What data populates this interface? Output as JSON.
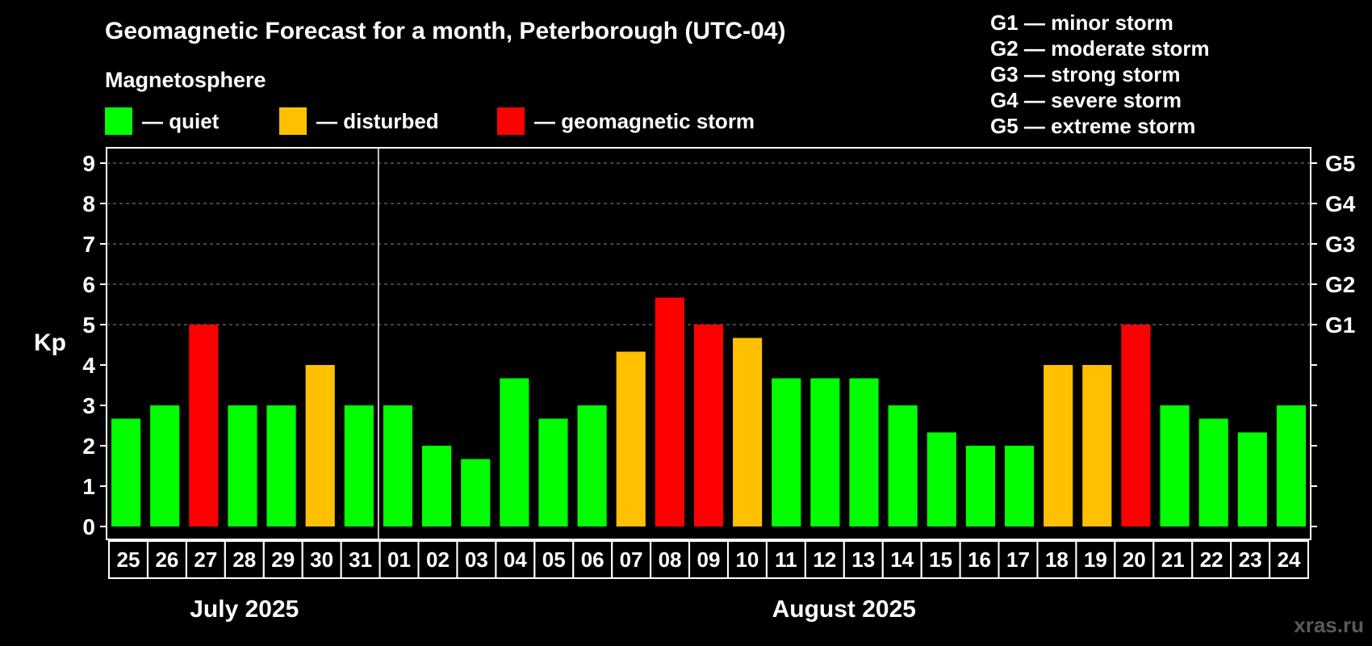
{
  "title": "Geomagnetic Forecast for a month, Peterborough (UTC-04)",
  "legend": {
    "heading": "Magnetosphere",
    "items": [
      {
        "label": "— quiet",
        "color": "#00ff00"
      },
      {
        "label": "— disturbed",
        "color": "#ffc000"
      },
      {
        "label": "— geomagnetic storm",
        "color": "#ff0000"
      }
    ]
  },
  "storm_scale": [
    "G1 — minor storm",
    "G2 — moderate storm",
    "G3 — strong storm",
    "G4 — severe storm",
    "G5 — extreme storm"
  ],
  "watermark": "xras.ru",
  "colors": {
    "quiet": "#00ff00",
    "disturbed": "#ffc000",
    "storm": "#ff0000"
  },
  "chart_data": {
    "type": "bar",
    "ylabel": "Kp",
    "ylim": [
      0,
      9
    ],
    "yticks": [
      0,
      1,
      2,
      3,
      4,
      5,
      6,
      7,
      8,
      9
    ],
    "right_ticks": [
      {
        "value": 5,
        "label": "G1"
      },
      {
        "value": 6,
        "label": "G2"
      },
      {
        "value": 7,
        "label": "G3"
      },
      {
        "value": 8,
        "label": "G4"
      },
      {
        "value": 9,
        "label": "G5"
      }
    ],
    "grid": "dashed at 5,6,7,8,9",
    "categories": [
      "25",
      "26",
      "27",
      "28",
      "29",
      "30",
      "31",
      "01",
      "02",
      "03",
      "04",
      "05",
      "06",
      "07",
      "08",
      "09",
      "10",
      "11",
      "12",
      "13",
      "14",
      "15",
      "16",
      "17",
      "18",
      "19",
      "20",
      "21",
      "22",
      "23",
      "24"
    ],
    "values": [
      2.67,
      3.0,
      5.0,
      3.0,
      3.0,
      4.0,
      3.0,
      3.0,
      2.0,
      1.67,
      3.67,
      2.67,
      3.0,
      4.33,
      5.67,
      5.0,
      4.67,
      3.67,
      3.67,
      3.67,
      3.0,
      2.33,
      2.0,
      2.0,
      4.0,
      4.0,
      5.0,
      3.0,
      2.67,
      2.33,
      3.0
    ],
    "status": [
      "quiet",
      "quiet",
      "storm",
      "quiet",
      "quiet",
      "disturbed",
      "quiet",
      "quiet",
      "quiet",
      "quiet",
      "quiet",
      "quiet",
      "quiet",
      "disturbed",
      "storm",
      "storm",
      "disturbed",
      "quiet",
      "quiet",
      "quiet",
      "quiet",
      "quiet",
      "quiet",
      "quiet",
      "disturbed",
      "disturbed",
      "storm",
      "quiet",
      "quiet",
      "quiet",
      "quiet"
    ],
    "months": [
      {
        "label": "July 2025",
        "start": 0,
        "end": 6
      },
      {
        "label": "August 2025",
        "start": 7,
        "end": 30
      }
    ]
  }
}
